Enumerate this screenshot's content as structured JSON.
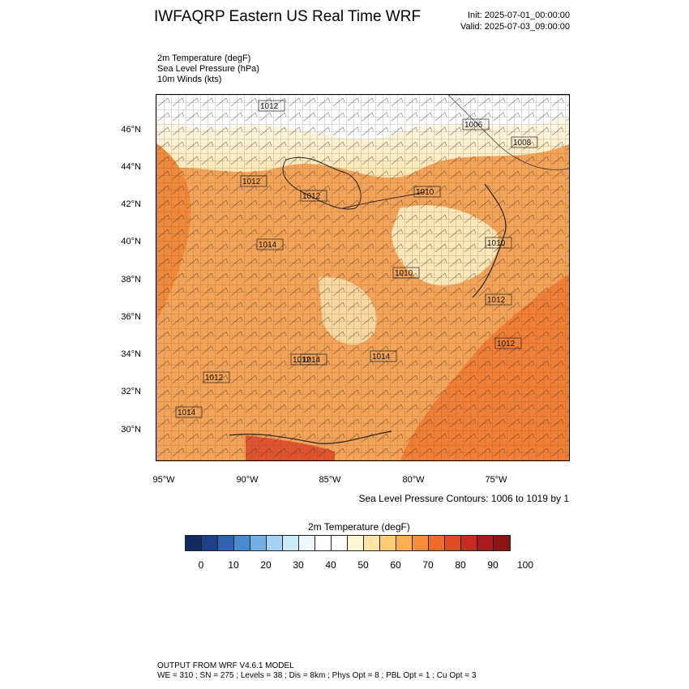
{
  "header": {
    "title": "IWFAQRP Eastern US Real Time WRF",
    "init": "Init: 2025-07-01_00:00:00",
    "valid": "Valid: 2025-07-03_09:00:00"
  },
  "fields": [
    "2m Temperature   (degF)",
    "Sea Level Pressure   (hPa)",
    "10m Winds   (kts)"
  ],
  "map": {
    "lat_labels": [
      "46°N",
      "44°N",
      "42°N",
      "40°N",
      "38°N",
      "36°N",
      "34°N",
      "32°N",
      "30°N"
    ],
    "lon_labels": [
      "95°W",
      "90°W",
      "85°W",
      "80°W",
      "75°W"
    ],
    "pressure_labels": [
      "1012",
      "1006",
      "1008",
      "1012",
      "1012",
      "1010",
      "1014",
      "1010",
      "1010",
      "1012",
      "1012",
      "1014",
      "1012",
      "1012",
      "1014",
      "1014"
    ],
    "contour_note": "Sea Level Pressure Contours: 1006 to 1019 by 1"
  },
  "colorbar": {
    "title": "2m Temperature  (degF)",
    "labels": [
      "0",
      "10",
      "20",
      "30",
      "40",
      "50",
      "60",
      "70",
      "80",
      "90",
      "100"
    ],
    "colors": [
      "#142a5e",
      "#1e3f8a",
      "#2f62b1",
      "#4a8bd0",
      "#72b0e4",
      "#a3d2f2",
      "#cde9f8",
      "#eef7fc",
      "#ffffff",
      "#ffffff",
      "#fff4d4",
      "#ffe4a3",
      "#ffcd70",
      "#fcb04f",
      "#f88d3a",
      "#f06a2c",
      "#e04a24",
      "#c82b22",
      "#a81a1e",
      "#8b1515"
    ]
  },
  "footer": {
    "line1": "OUTPUT FROM WRF V4.6.1 MODEL",
    "line2": "WE = 310 ; SN = 275 ; Levels = 38 ; Dis = 8km ; Phys Opt = 8 ; PBL Opt = 1 ; Cu Opt = 3"
  }
}
